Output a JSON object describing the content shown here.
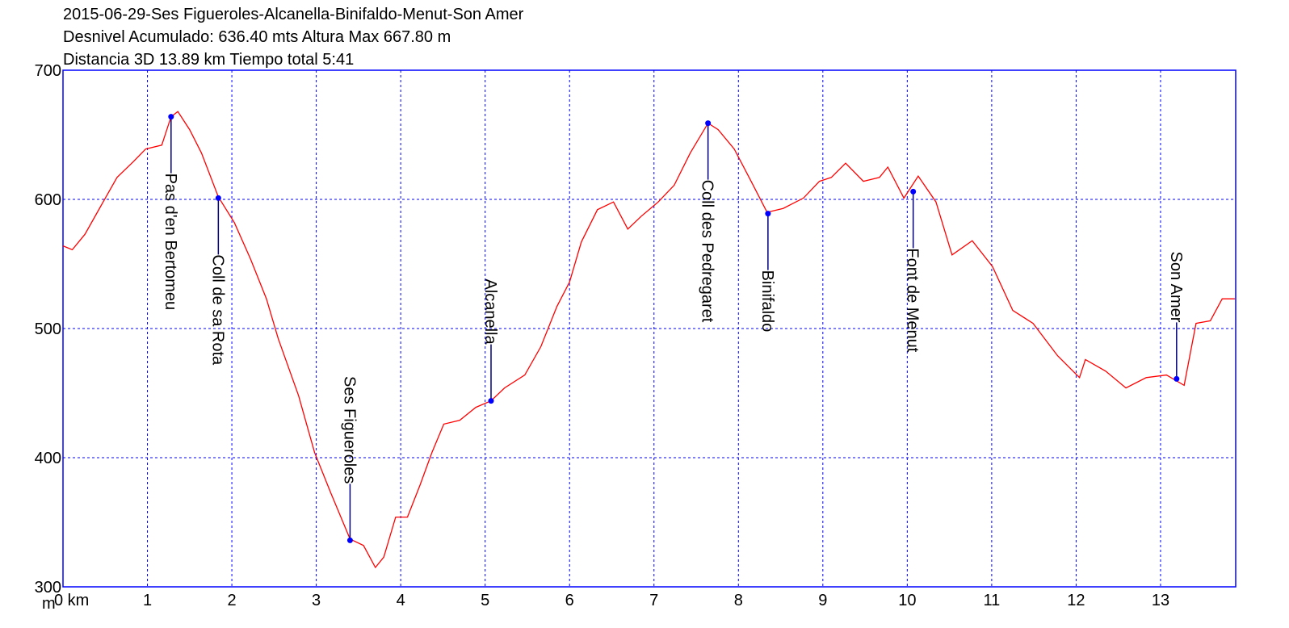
{
  "chart_data": {
    "type": "line",
    "title_lines": [
      "2015-06-29-Ses Figueroles-Alcanella-Binifaldo-Menut-Son Amer",
      "Desnivel Acumulado: 636.40 mts  Altura Max 667.80 m",
      "Distancia 3D 13.89 km  Tiempo total 5:41"
    ],
    "ylabel": "m",
    "xlim": [
      0,
      13.89
    ],
    "ylim": [
      300,
      700
    ],
    "xticks": [
      {
        "value": 0,
        "label": "0 km"
      },
      1,
      2,
      3,
      4,
      5,
      6,
      7,
      8,
      9,
      10,
      11,
      12,
      13
    ],
    "yticks": [
      300,
      400,
      500,
      600,
      700
    ],
    "grid": true,
    "series": [
      {
        "color": "#ff0000",
        "x": [
          0,
          0.11,
          0.26,
          0.45,
          0.64,
          0.83,
          0.98,
          1.17,
          1.28,
          1.36,
          1.5,
          1.64,
          1.84,
          2.03,
          2.22,
          2.41,
          2.55,
          2.79,
          2.98,
          3.17,
          3.4,
          3.56,
          3.7,
          3.8,
          3.94,
          4.08,
          4.23,
          4.37,
          4.51,
          4.7,
          4.89,
          5.07,
          5.23,
          5.47,
          5.66,
          5.85,
          6.0,
          6.14,
          6.33,
          6.52,
          6.69,
          6.85,
          7.05,
          7.24,
          7.43,
          7.64,
          7.76,
          7.95,
          8.15,
          8.34,
          8.53,
          8.77,
          8.96,
          9.1,
          9.27,
          9.48,
          9.67,
          9.77,
          9.96,
          10.13,
          10.34,
          10.53,
          10.77,
          11.01,
          11.25,
          11.49,
          11.78,
          12.04,
          12.11,
          12.35,
          12.59,
          12.83,
          13.07,
          13.28,
          13.42,
          13.59,
          13.73,
          13.88
        ],
        "values": [
          564,
          561,
          573,
          595,
          617,
          629,
          639,
          642,
          664,
          668,
          654,
          636,
          602,
          582,
          554,
          523,
          492,
          448,
          404,
          373,
          337,
          332,
          315,
          323,
          354,
          354,
          379,
          404,
          426,
          429,
          439,
          444,
          454,
          464,
          486,
          517,
          536,
          567,
          592,
          598,
          577,
          587,
          598,
          611,
          636,
          659,
          654,
          639,
          614,
          590,
          593,
          601,
          614,
          617,
          628,
          614,
          617,
          625,
          601,
          618,
          598,
          557,
          568,
          548,
          514,
          504,
          479,
          462,
          476,
          467,
          454,
          462,
          464,
          456,
          504,
          506,
          523,
          523
        ]
      }
    ],
    "waypoints": {
      "color": "#0000ff",
      "labels": [
        "Pas d'en Bertomeu",
        "Coll de sa Rota",
        "Ses Figueroles",
        "Alcanella",
        "Coll des Pedregaret",
        "Binifaldo",
        "Font de Menut",
        "Son Amer"
      ],
      "x": [
        1.28,
        1.84,
        3.4,
        5.07,
        7.64,
        8.35,
        10.07,
        13.19
      ],
      "values": [
        664,
        601,
        336,
        444,
        659,
        589,
        606,
        461
      ]
    }
  }
}
